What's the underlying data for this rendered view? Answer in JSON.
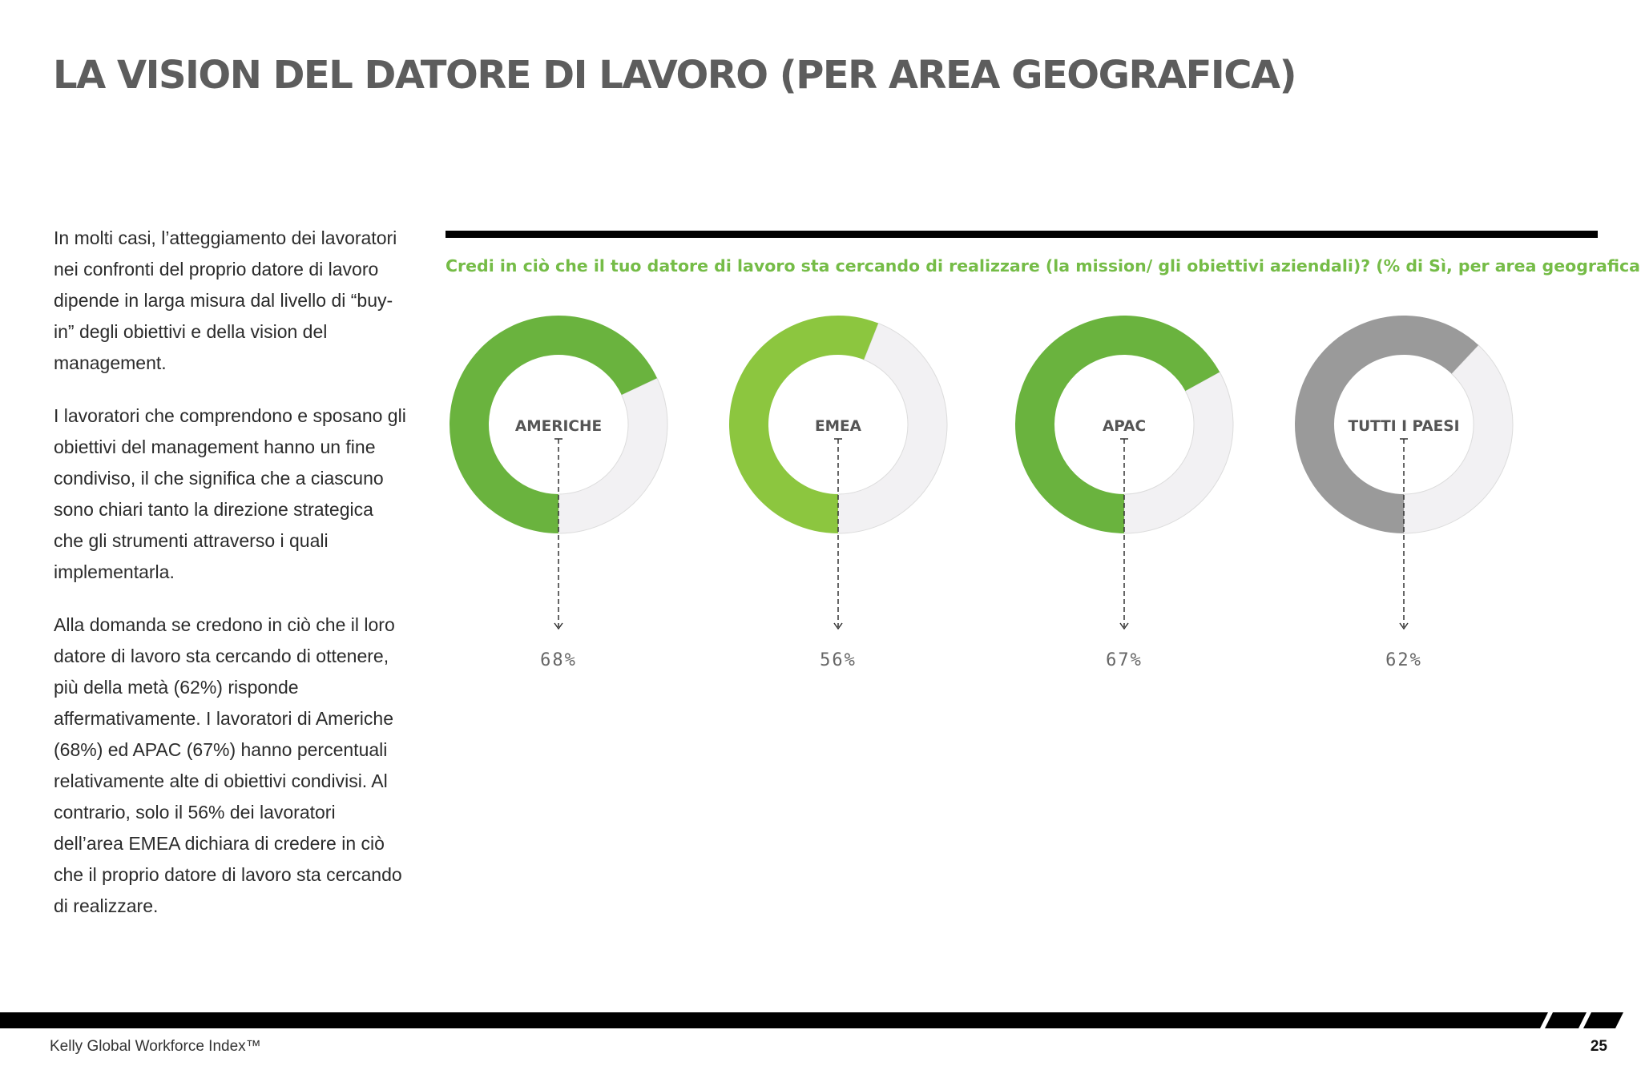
{
  "title": "LA VISION DEL DATORE DI LAVORO (PER AREA GEOGRAFICA)",
  "paragraphs": [
    "In molti casi, l’atteggiamento dei lavoratori nei confronti del proprio datore di lavoro dipende in larga misura dal livello di “buy-in” degli obiettivi e della vision del management.",
    "I lavoratori che comprendono e sposano gli obiettivi del management hanno un fine condiviso, il che significa che a ciascuno sono chiari tanto la direzione strategica che gli strumenti attraverso i quali implementarla.",
    "Alla domanda se credono in ciò che il loro datore di lavoro sta cercando di ottenere, più della metà (62%) risponde affermativamente. I lavoratori di Americhe (68%) ed APAC (67%) hanno percentuali relativamente alte di obiettivi condivisi. Al contrario, solo il 56% dei lavoratori dell’area EMEA dichiara di credere in ciò che il proprio datore di lavoro sta cercando di realizzare."
  ],
  "chart_data": {
    "type": "pie",
    "title": "Credi in ciò che il tuo datore di lavoro sta cercando di realizzare (la mission/ gli obiettivi aziendali)? (% di Sì, per area geografica)",
    "categories": [
      "AMERICHE",
      "EMEA",
      "APAC",
      "TUTTI I PAESI"
    ],
    "values": [
      68,
      56,
      67,
      62
    ],
    "value_labels": [
      "68%",
      "56%",
      "67%",
      "62%"
    ],
    "unit": "%",
    "colors": [
      "#6ab33e",
      "#8cc63f",
      "#6ab33e",
      "#9a9a9a"
    ],
    "remainder_color": "#f2f1f3"
  },
  "footer": {
    "publication": "Kelly Global Workforce Index™",
    "page_number": "25"
  }
}
